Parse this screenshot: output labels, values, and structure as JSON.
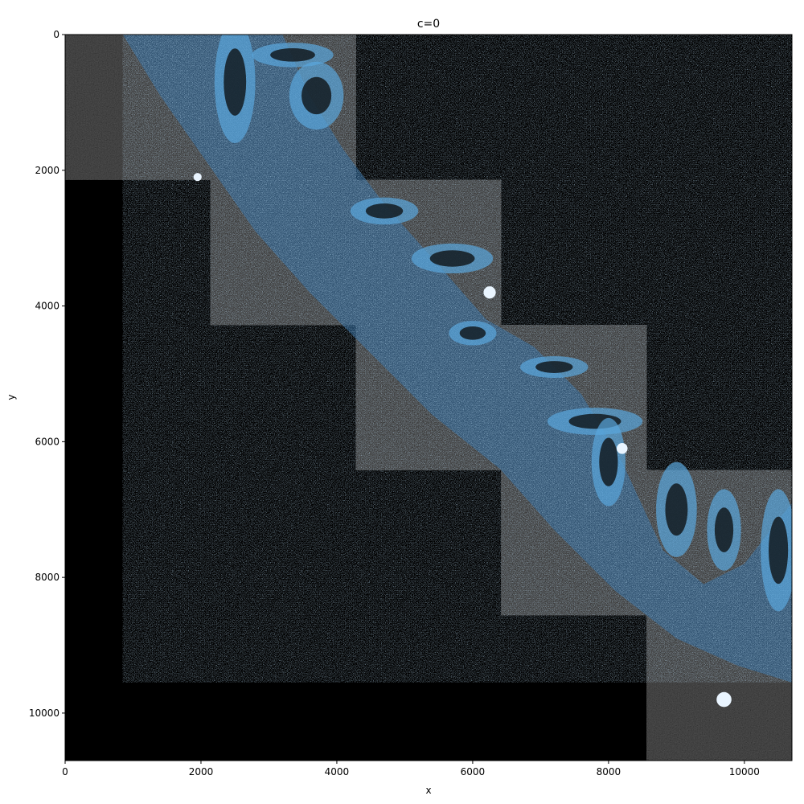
{
  "figure": {
    "title": "c=0",
    "xlabel": "x",
    "ylabel": "y"
  },
  "axes": {
    "x_range": [
      0,
      10700
    ],
    "y_range": [
      0,
      10700
    ],
    "y_inverted": true,
    "x_ticks": [
      0,
      2000,
      4000,
      6000,
      8000,
      10000
    ],
    "y_ticks": [
      0,
      2000,
      4000,
      6000,
      8000,
      10000
    ],
    "x_tick_labels": [
      "0",
      "2000",
      "4000",
      "6000",
      "8000",
      "10000"
    ],
    "y_tick_labels": [
      "0",
      "2000",
      "4000",
      "6000",
      "8000",
      "10000"
    ]
  },
  "image": {
    "description_tiles": [
      {
        "x0": 0,
        "y0": 0,
        "x1": 4280,
        "y1": 2140
      },
      {
        "x0": 2140,
        "y0": 2140,
        "x1": 6420,
        "y1": 4280
      },
      {
        "x0": 4280,
        "y0": 4280,
        "x1": 8560,
        "y1": 6420
      },
      {
        "x0": 6420,
        "y0": 6420,
        "x1": 10700,
        "y1": 8560
      },
      {
        "x0": 8560,
        "y0": 8560,
        "x1": 10700,
        "y1": 10700
      }
    ],
    "background_color": "#000000",
    "tile_noise_color": "#1c1c1c",
    "overlay_color": "#5aa7dd",
    "overlay_edge_color": "#2b6aa0",
    "bright_color": "#eaf5ff"
  }
}
